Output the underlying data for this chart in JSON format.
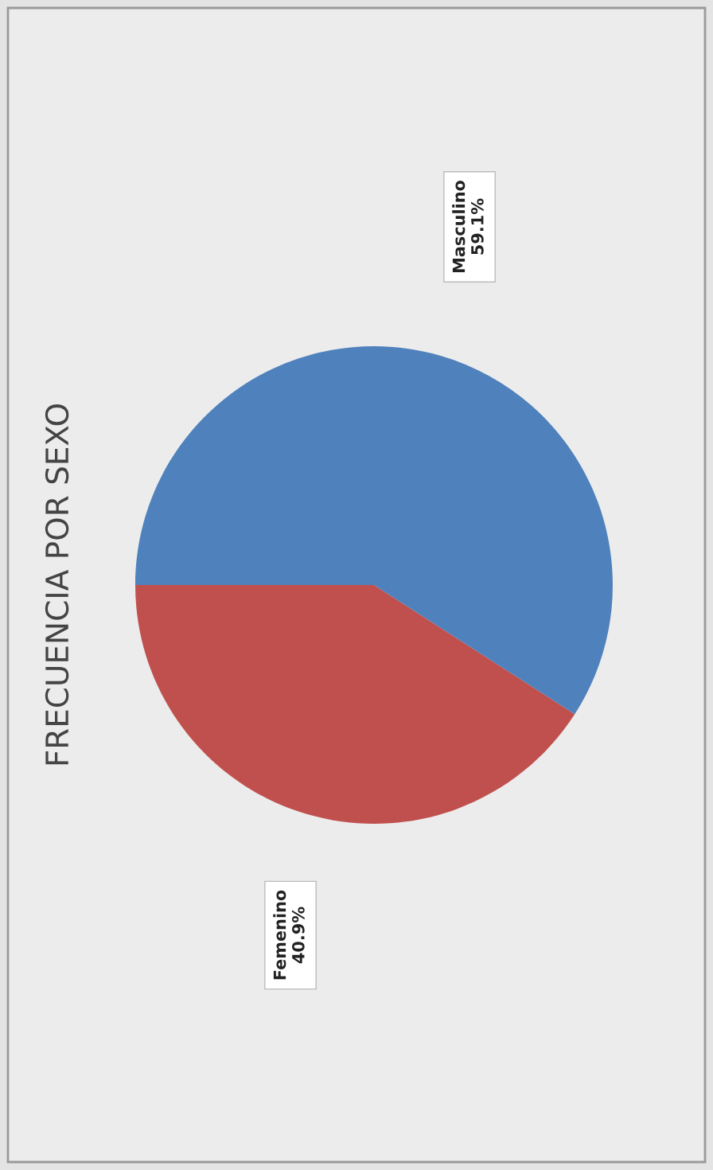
{
  "chart_data": {
    "type": "pie",
    "title": "FRECUENCIA POR SEXO",
    "categories": [
      "Femenino",
      "Masculino"
    ],
    "values": [
      40.9,
      59.1
    ],
    "colors": [
      "#c0504d",
      "#4f81bd"
    ],
    "value_labels": [
      "40.9%",
      "59.1%"
    ],
    "legend": false
  }
}
